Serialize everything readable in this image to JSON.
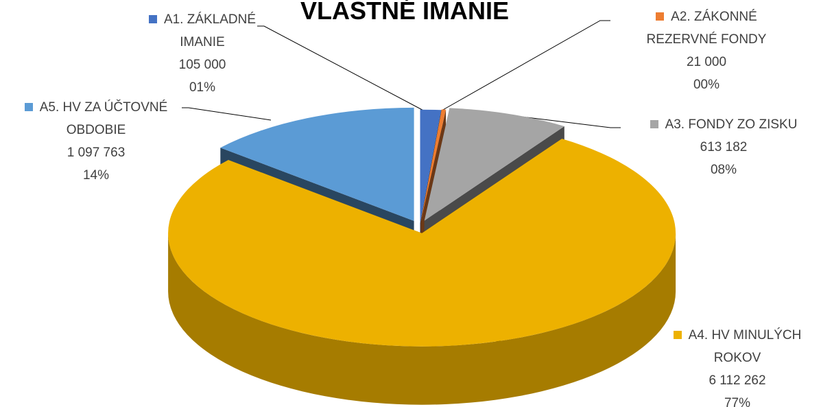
{
  "chart_data": {
    "type": "pie",
    "title": "VLASTNÉ IMANIE",
    "categories": [
      "A1. ZÁKLADNÉ IMANIE",
      "A2. ZÁKONNÉ REZERVNÉ FONDY",
      "A3. FONDY ZO ZISKU",
      "A4. HV MINULÝCH ROKOV",
      "A5. HV ZA ÚČTOVNÉ OBDOBIE"
    ],
    "values": [
      105000,
      21000,
      613182,
      6112262,
      1097763
    ],
    "value_labels": [
      "105 000",
      "21 000",
      "613 182",
      "6 112 262",
      "1 097 763"
    ],
    "percent_labels": [
      "01%",
      "00%",
      "08%",
      "77%",
      "14%"
    ],
    "colors": [
      "#4472c4",
      "#ed7d31",
      "#a5a5a5",
      "#edb100",
      "#5b9bd5"
    ]
  }
}
